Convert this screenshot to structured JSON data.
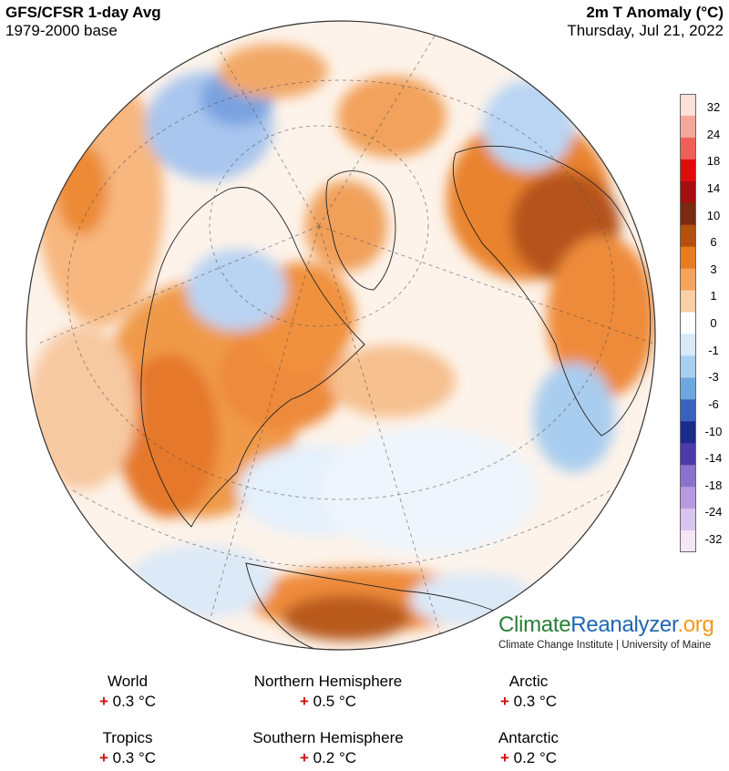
{
  "header": {
    "title": "GFS/CFSR 1-day Avg",
    "base": "1979-2000 base",
    "metric": "2m T Anomaly (°C)",
    "date": "Thursday, Jul 21, 2022"
  },
  "legend": {
    "ticks": [
      "32",
      "24",
      "18",
      "14",
      "10",
      "6",
      "3",
      "1",
      "0",
      "-1",
      "-3",
      "-6",
      "-10",
      "-14",
      "-18",
      "-24",
      "-32"
    ],
    "colors": [
      "#fde2da",
      "#f5a89a",
      "#ee6056",
      "#e00c0c",
      "#a60f0f",
      "#7a2b10",
      "#b3500e",
      "#e87b1e",
      "#f5a45c",
      "#fbd0a6",
      "#ffffff",
      "#d8e9f8",
      "#a9d0f0",
      "#6ea8e0",
      "#3a62c0",
      "#1b2b8a",
      "#4b3aa8",
      "#8a72cc",
      "#b79be0",
      "#d9c6ee",
      "#f5e6f4"
    ]
  },
  "brand": {
    "part1": "Climate",
    "part2": "Reanalyzer",
    "part3": ".org",
    "subtitle": "Climate Change Institute | University of Maine"
  },
  "stats": [
    {
      "label": "World",
      "sign": "+",
      "value": "0.3 °C"
    },
    {
      "label": "Northern Hemisphere",
      "sign": "+",
      "value": "0.5 °C"
    },
    {
      "label": "Arctic",
      "sign": "+",
      "value": "0.3 °C"
    },
    {
      "label": "Tropics",
      "sign": "+",
      "value": "0.3 °C"
    },
    {
      "label": "Southern Hemisphere",
      "sign": "+",
      "value": "0.2 °C"
    },
    {
      "label": "Antarctic",
      "sign": "+",
      "value": "0.2 °C"
    }
  ]
}
